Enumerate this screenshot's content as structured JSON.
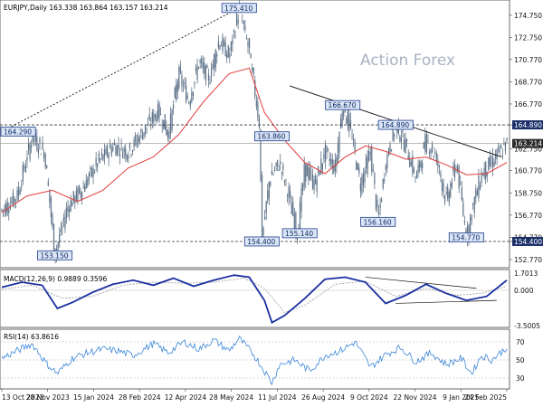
{
  "chart_data": [
    {
      "type": "candlestick",
      "header": "EURJPY,Daily  163.338 163.864 163.157 163.214",
      "watermark": "Action Forex",
      "yticks": [
        "174.750",
        "172.750",
        "170.770",
        "168.770",
        "166.770",
        "164.890",
        "162.750",
        "160.770",
        "158.750",
        "156.770",
        "154.770",
        "154.400",
        "152.770"
      ],
      "ylim": [
        152.2,
        175.8
      ],
      "current_price": "163.214",
      "horizontal_levels": [
        {
          "label": "164.890",
          "value": 164.89
        },
        {
          "label": "154.400",
          "value": 154.4
        }
      ],
      "xticks": [
        "13 Oct 2023",
        "28 Nov 2023",
        "15 Jan 2024",
        "28 Feb 2024",
        "12 Apr 2024",
        "28 May 2024",
        "11 Jul 2024",
        "26 Aug 2024",
        "9 Oct 2024",
        "22 Nov 2024",
        "9 Jan 2025",
        "24 Feb 2025"
      ],
      "annotations": [
        {
          "label": "175.410",
          "x": 0.47,
          "value": 175.41
        },
        {
          "label": "164.290",
          "x": 0.0,
          "value": 164.29
        },
        {
          "label": "153.150",
          "x": 0.105,
          "value": 153.15
        },
        {
          "label": "163.860",
          "x": 0.535,
          "value": 163.86
        },
        {
          "label": "154.400",
          "x": 0.515,
          "value": 154.4
        },
        {
          "label": "155.140",
          "x": 0.59,
          "value": 155.14
        },
        {
          "label": "166.670",
          "x": 0.675,
          "value": 166.67
        },
        {
          "label": "164.890",
          "x": 0.78,
          "value": 164.89
        },
        {
          "label": "156.160",
          "x": 0.745,
          "value": 156.16
        },
        {
          "label": "154.770",
          "x": 0.92,
          "value": 154.77
        }
      ],
      "series": [
        {
          "name": "price",
          "x": [
            0,
            0.03,
            0.06,
            0.085,
            0.105,
            0.13,
            0.16,
            0.19,
            0.22,
            0.25,
            0.28,
            0.31,
            0.33,
            0.35,
            0.37,
            0.39,
            0.41,
            0.43,
            0.45,
            0.47,
            0.49,
            0.51,
            0.515,
            0.53,
            0.55,
            0.57,
            0.585,
            0.6,
            0.62,
            0.64,
            0.66,
            0.675,
            0.69,
            0.71,
            0.73,
            0.745,
            0.76,
            0.78,
            0.8,
            0.82,
            0.84,
            0.86,
            0.88,
            0.9,
            0.92,
            0.935,
            0.95,
            0.97,
            1.0
          ],
          "values": [
            157.2,
            158.5,
            163.8,
            162.4,
            153.2,
            157.5,
            159.2,
            161.5,
            163.0,
            162.5,
            164.3,
            166.2,
            164.0,
            169.5,
            167.0,
            170.5,
            169.0,
            172.5,
            171.0,
            175.4,
            171.5,
            165.0,
            154.5,
            160.0,
            161.5,
            158.0,
            155.2,
            161.0,
            159.5,
            162.5,
            161.0,
            166.7,
            164.5,
            159.5,
            162.5,
            156.2,
            161.5,
            164.9,
            163.0,
            160.0,
            163.5,
            162.0,
            158.0,
            161.5,
            154.8,
            158.0,
            160.5,
            161.5,
            163.2
          ]
        },
        {
          "name": "moving-average",
          "x": [
            0,
            0.05,
            0.1,
            0.15,
            0.2,
            0.25,
            0.3,
            0.35,
            0.4,
            0.45,
            0.49,
            0.52,
            0.56,
            0.6,
            0.64,
            0.68,
            0.72,
            0.76,
            0.8,
            0.84,
            0.88,
            0.92,
            0.96,
            1.0
          ],
          "values": [
            157.0,
            158.5,
            159.0,
            158.0,
            159.0,
            161.0,
            162.0,
            164.0,
            167.0,
            169.5,
            170.0,
            166.0,
            163.5,
            161.5,
            160.5,
            162.0,
            163.0,
            162.5,
            161.8,
            162.0,
            161.3,
            160.4,
            160.5,
            161.5
          ]
        }
      ],
      "trendlines": [
        {
          "from": [
            0.0,
            164.29
          ],
          "to": [
            0.47,
            175.41
          ]
        },
        {
          "from": [
            0.57,
            168.4
          ],
          "to": [
            0.99,
            162.0
          ]
        }
      ]
    },
    {
      "type": "line",
      "label": "MACD(12,26,9) 0.9889 0.3596",
      "yticks": [
        "1.7013",
        "0.000",
        "-3.5005"
      ],
      "ylim": [
        -3.5,
        1.7
      ],
      "series": [
        {
          "name": "macd",
          "x": [
            0,
            0.04,
            0.08,
            0.11,
            0.14,
            0.18,
            0.22,
            0.26,
            0.3,
            0.34,
            0.38,
            0.42,
            0.46,
            0.49,
            0.52,
            0.535,
            0.56,
            0.6,
            0.64,
            0.68,
            0.72,
            0.76,
            0.8,
            0.84,
            0.88,
            0.92,
            0.96,
            1.0
          ],
          "values": [
            0.3,
            0.8,
            0.5,
            -1.8,
            -1.2,
            -0.2,
            0.6,
            1.0,
            0.5,
            1.2,
            0.4,
            1.0,
            1.5,
            1.3,
            -1.0,
            -3.2,
            -2.5,
            -0.8,
            1.1,
            1.3,
            0.8,
            -1.3,
            -0.5,
            0.6,
            -0.3,
            -1.0,
            -0.6,
            1.0
          ]
        },
        {
          "name": "signal",
          "x": [
            0,
            0.06,
            0.12,
            0.18,
            0.24,
            0.3,
            0.36,
            0.42,
            0.48,
            0.52,
            0.56,
            0.6,
            0.66,
            0.72,
            0.78,
            0.84,
            0.9,
            0.95,
            1.0
          ],
          "values": [
            0.1,
            0.5,
            -0.8,
            -0.6,
            0.5,
            0.8,
            0.7,
            0.8,
            1.2,
            0.2,
            -2.2,
            -1.5,
            0.6,
            0.9,
            -0.6,
            0.2,
            -0.5,
            -0.3,
            0.4
          ]
        }
      ]
    },
    {
      "type": "line",
      "label": "RSI(14) 63.8616",
      "yticks": [
        "70",
        "50",
        "30"
      ],
      "ylim": [
        20,
        80
      ],
      "series": [
        {
          "name": "rsi",
          "x": [
            0,
            0.03,
            0.06,
            0.09,
            0.11,
            0.14,
            0.17,
            0.2,
            0.23,
            0.26,
            0.3,
            0.33,
            0.36,
            0.39,
            0.42,
            0.45,
            0.47,
            0.5,
            0.52,
            0.535,
            0.55,
            0.58,
            0.61,
            0.64,
            0.67,
            0.7,
            0.73,
            0.76,
            0.79,
            0.82,
            0.85,
            0.88,
            0.91,
            0.93,
            0.95,
            0.97,
            1.0
          ],
          "values": [
            52,
            60,
            68,
            45,
            35,
            52,
            58,
            62,
            60,
            55,
            68,
            58,
            70,
            62,
            72,
            60,
            74,
            55,
            38,
            25,
            45,
            50,
            38,
            55,
            60,
            70,
            42,
            56,
            64,
            48,
            58,
            45,
            52,
            35,
            55,
            50,
            63.9
          ]
        }
      ]
    }
  ]
}
